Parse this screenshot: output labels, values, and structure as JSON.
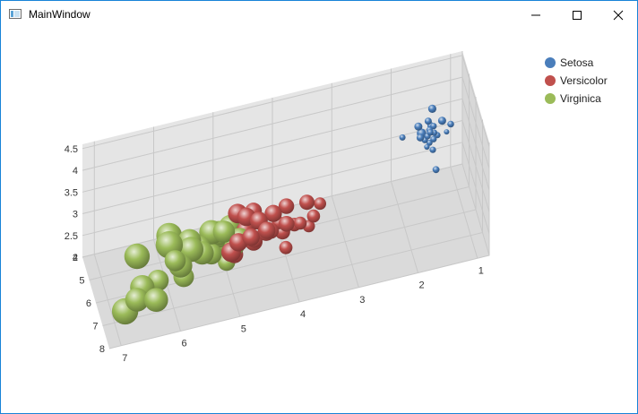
{
  "window": {
    "title": "MainWindow",
    "icons": {
      "app": "window-app-icon",
      "minimize": "minimize-icon",
      "maximize": "maximize-icon",
      "close": "close-icon"
    }
  },
  "chart_data": {
    "type": "scatter",
    "subtype": "3d-bubble",
    "title": "",
    "xlabel": "",
    "ylabel": "",
    "zlabel": "",
    "x_ticks": [
      1,
      2,
      3,
      4,
      5,
      6,
      7
    ],
    "y_ticks": [
      2,
      2.5,
      3,
      3.5,
      4,
      4.5
    ],
    "z_ticks": [
      4,
      5,
      6,
      7,
      8
    ],
    "x_range": [
      0.8,
      7.2
    ],
    "y_range": [
      2,
      4.6
    ],
    "z_range": [
      4,
      8
    ],
    "grid": true,
    "legend_position": "top-right",
    "series": [
      {
        "name": "Setosa",
        "color": "#4a7ebb",
        "points": [
          {
            "x": 1.4,
            "y": 3.5,
            "z": 5.1,
            "size": 0.2
          },
          {
            "x": 1.4,
            "y": 3.0,
            "z": 4.9,
            "size": 0.2
          },
          {
            "x": 1.3,
            "y": 3.2,
            "z": 4.7,
            "size": 0.2
          },
          {
            "x": 1.5,
            "y": 3.1,
            "z": 4.6,
            "size": 0.2
          },
          {
            "x": 1.4,
            "y": 3.6,
            "z": 5.0,
            "size": 0.2
          },
          {
            "x": 1.7,
            "y": 3.9,
            "z": 5.4,
            "size": 0.4
          },
          {
            "x": 1.4,
            "y": 3.4,
            "z": 4.6,
            "size": 0.3
          },
          {
            "x": 1.5,
            "y": 3.4,
            "z": 5.0,
            "size": 0.2
          },
          {
            "x": 1.4,
            "y": 2.9,
            "z": 4.4,
            "size": 0.2
          },
          {
            "x": 1.5,
            "y": 3.1,
            "z": 4.9,
            "size": 0.1
          },
          {
            "x": 1.5,
            "y": 3.7,
            "z": 5.4,
            "size": 0.2
          },
          {
            "x": 1.6,
            "y": 3.4,
            "z": 4.8,
            "size": 0.2
          },
          {
            "x": 1.1,
            "y": 3.0,
            "z": 4.3,
            "size": 0.1
          },
          {
            "x": 1.2,
            "y": 4.0,
            "z": 5.8,
            "size": 0.2
          },
          {
            "x": 1.5,
            "y": 4.4,
            "z": 5.7,
            "size": 0.4
          },
          {
            "x": 1.3,
            "y": 3.9,
            "z": 5.4,
            "size": 0.4
          },
          {
            "x": 1.7,
            "y": 3.8,
            "z": 5.7,
            "size": 0.3
          },
          {
            "x": 1.5,
            "y": 3.8,
            "z": 5.1,
            "size": 0.3
          },
          {
            "x": 1.9,
            "y": 3.4,
            "z": 4.8,
            "size": 0.2
          },
          {
            "x": 1.6,
            "y": 3.5,
            "z": 5.0,
            "size": 0.6
          },
          {
            "x": 1.3,
            "y": 2.3,
            "z": 4.5,
            "size": 0.3
          },
          {
            "x": 1.5,
            "y": 3.7,
            "z": 5.3,
            "size": 0.2
          },
          {
            "x": 1.4,
            "y": 3.3,
            "z": 5.0,
            "size": 0.2
          }
        ]
      },
      {
        "name": "Versicolor",
        "color": "#c0504d",
        "points": [
          {
            "x": 4.7,
            "y": 3.2,
            "z": 7.0,
            "size": 1.4
          },
          {
            "x": 4.5,
            "y": 3.2,
            "z": 6.4,
            "size": 1.5
          },
          {
            "x": 4.9,
            "y": 3.1,
            "z": 6.9,
            "size": 1.5
          },
          {
            "x": 4.0,
            "y": 2.3,
            "z": 5.5,
            "size": 1.3
          },
          {
            "x": 4.6,
            "y": 2.8,
            "z": 6.5,
            "size": 1.5
          },
          {
            "x": 4.5,
            "y": 2.8,
            "z": 5.7,
            "size": 1.3
          },
          {
            "x": 4.7,
            "y": 3.3,
            "z": 6.3,
            "size": 1.6
          },
          {
            "x": 3.3,
            "y": 2.4,
            "z": 4.9,
            "size": 1.0
          },
          {
            "x": 4.6,
            "y": 2.9,
            "z": 6.6,
            "size": 1.3
          },
          {
            "x": 3.9,
            "y": 2.7,
            "z": 5.2,
            "size": 1.4
          },
          {
            "x": 3.5,
            "y": 2.0,
            "z": 5.0,
            "size": 1.0
          },
          {
            "x": 4.2,
            "y": 3.0,
            "z": 5.9,
            "size": 1.5
          },
          {
            "x": 4.0,
            "y": 2.2,
            "z": 6.0,
            "size": 1.0
          },
          {
            "x": 4.7,
            "y": 2.9,
            "z": 6.1,
            "size": 1.4
          },
          {
            "x": 3.6,
            "y": 2.9,
            "z": 5.6,
            "size": 1.3
          },
          {
            "x": 4.4,
            "y": 3.1,
            "z": 6.7,
            "size": 1.4
          },
          {
            "x": 4.5,
            "y": 3.0,
            "z": 5.6,
            "size": 1.5
          },
          {
            "x": 4.1,
            "y": 2.7,
            "z": 5.8,
            "size": 1.0
          },
          {
            "x": 4.8,
            "y": 3.2,
            "z": 5.9,
            "size": 1.8
          },
          {
            "x": 4.0,
            "y": 2.8,
            "z": 6.1,
            "size": 1.3
          },
          {
            "x": 4.9,
            "y": 2.5,
            "z": 6.3,
            "size": 1.5
          },
          {
            "x": 4.3,
            "y": 2.9,
            "z": 6.4,
            "size": 1.3
          },
          {
            "x": 4.4,
            "y": 3.0,
            "z": 6.6,
            "size": 1.4
          },
          {
            "x": 5.0,
            "y": 2.8,
            "z": 6.7,
            "size": 1.7
          },
          {
            "x": 3.5,
            "y": 2.6,
            "z": 5.7,
            "size": 1.0
          },
          {
            "x": 3.8,
            "y": 2.4,
            "z": 5.5,
            "size": 1.1
          },
          {
            "x": 3.7,
            "y": 2.4,
            "z": 5.5,
            "size": 1.0
          }
        ]
      },
      {
        "name": "Virginica",
        "color": "#9bbb59",
        "points": [
          {
            "x": 6.0,
            "y": 3.3,
            "z": 6.3,
            "size": 2.5
          },
          {
            "x": 5.1,
            "y": 2.7,
            "z": 5.8,
            "size": 1.9
          },
          {
            "x": 5.9,
            "y": 3.0,
            "z": 7.1,
            "size": 2.1
          },
          {
            "x": 5.6,
            "y": 2.9,
            "z": 6.3,
            "size": 1.8
          },
          {
            "x": 5.8,
            "y": 3.0,
            "z": 6.5,
            "size": 2.2
          },
          {
            "x": 6.6,
            "y": 3.0,
            "z": 7.6,
            "size": 2.1
          },
          {
            "x": 4.5,
            "y": 2.5,
            "z": 4.9,
            "size": 1.7
          },
          {
            "x": 6.3,
            "y": 2.9,
            "z": 7.3,
            "size": 1.8
          },
          {
            "x": 5.8,
            "y": 2.5,
            "z": 6.7,
            "size": 1.8
          },
          {
            "x": 6.1,
            "y": 3.6,
            "z": 7.2,
            "size": 2.5
          },
          {
            "x": 5.1,
            "y": 3.2,
            "z": 6.5,
            "size": 2.0
          },
          {
            "x": 5.3,
            "y": 2.7,
            "z": 6.4,
            "size": 1.9
          },
          {
            "x": 5.5,
            "y": 3.0,
            "z": 6.8,
            "size": 2.1
          },
          {
            "x": 5.0,
            "y": 2.5,
            "z": 5.7,
            "size": 2.0
          },
          {
            "x": 5.1,
            "y": 2.8,
            "z": 5.8,
            "size": 2.4
          },
          {
            "x": 5.3,
            "y": 3.2,
            "z": 6.4,
            "size": 2.3
          },
          {
            "x": 5.5,
            "y": 3.0,
            "z": 6.5,
            "size": 1.8
          },
          {
            "x": 6.7,
            "y": 3.8,
            "z": 7.7,
            "size": 2.2
          },
          {
            "x": 6.9,
            "y": 2.6,
            "z": 7.7,
            "size": 2.3
          },
          {
            "x": 5.0,
            "y": 2.2,
            "z": 6.0,
            "size": 1.5
          },
          {
            "x": 5.7,
            "y": 3.2,
            "z": 6.9,
            "size": 2.3
          },
          {
            "x": 4.9,
            "y": 2.8,
            "z": 5.6,
            "size": 2.0
          },
          {
            "x": 6.7,
            "y": 2.8,
            "z": 7.7,
            "size": 2.0
          },
          {
            "x": 4.9,
            "y": 2.7,
            "z": 6.3,
            "size": 1.8
          },
          {
            "x": 5.7,
            "y": 3.3,
            "z": 6.7,
            "size": 2.1
          },
          {
            "x": 6.0,
            "y": 3.2,
            "z": 7.2,
            "size": 1.8
          },
          {
            "x": 4.8,
            "y": 2.8,
            "z": 6.2,
            "size": 1.8
          },
          {
            "x": 6.4,
            "y": 2.8,
            "z": 7.9,
            "size": 2.0
          },
          {
            "x": 5.6,
            "y": 2.8,
            "z": 6.3,
            "size": 1.5
          }
        ]
      }
    ]
  }
}
